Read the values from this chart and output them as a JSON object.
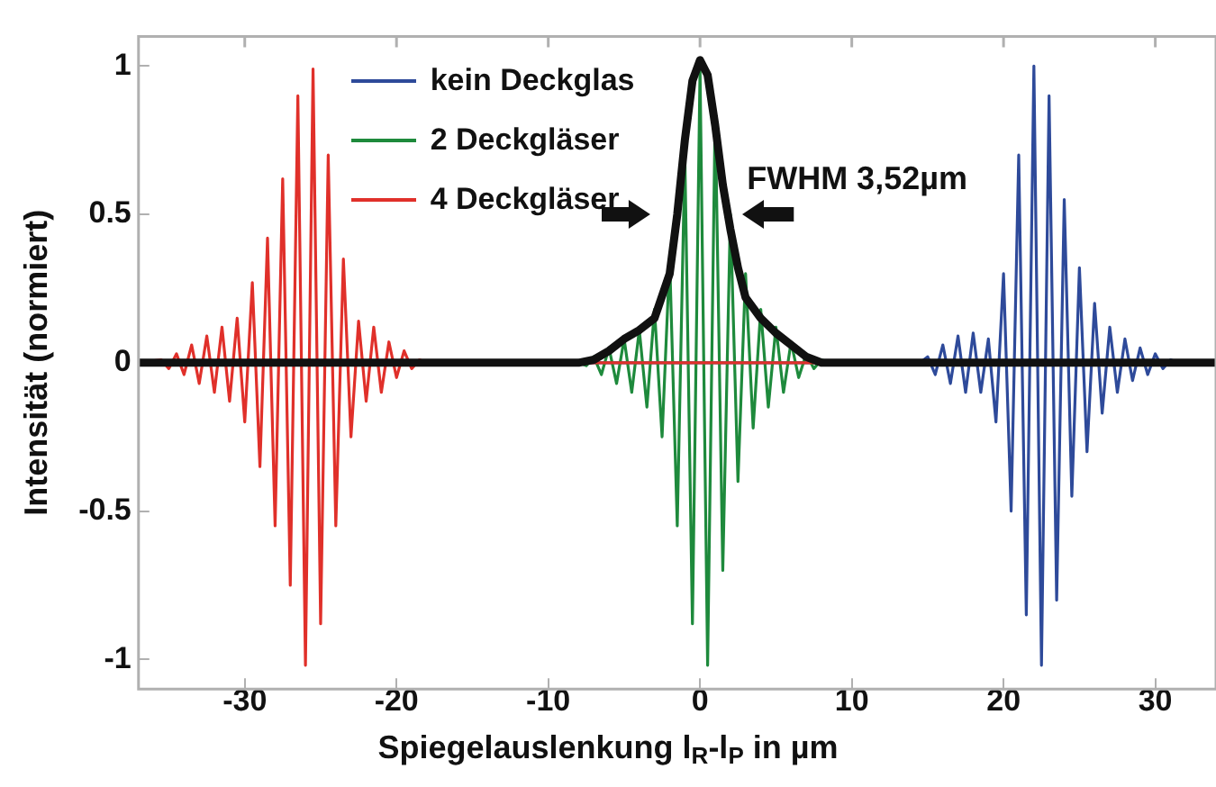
{
  "chart_data": {
    "type": "line",
    "xlabel": "Spiegelauslenkung l$_{R}$-l$_{P}$ in µm",
    "ylabel": "Intensität (normiert)",
    "xlim": [
      -37,
      34
    ],
    "xticks": [
      -30,
      -20,
      -10,
      0,
      10,
      20,
      30
    ],
    "ylim": [
      -1.1,
      1.1
    ],
    "yticks": [
      -1,
      -0.5,
      0,
      0.5,
      1
    ],
    "grid": false,
    "legend": "top left",
    "marker": "none",
    "line_style": "solid",
    "annotations": [
      "FWHM 3,52µm"
    ],
    "series": [
      {
        "name": "kein Deckglas",
        "color": "#2e4a9a",
        "x": [
          -37,
          14.5,
          15,
          15.5,
          16,
          16.5,
          17,
          17.5,
          18,
          18.5,
          19,
          19.5,
          20,
          20.5,
          21,
          21.5,
          22,
          22.5,
          23,
          23.5,
          24,
          24.5,
          25,
          25.5,
          26,
          26.5,
          27,
          27.5,
          28,
          28.5,
          29,
          29.5,
          30,
          30.5,
          31,
          31.5,
          34
        ],
        "values": [
          0,
          0,
          0.02,
          -0.04,
          0.06,
          -0.07,
          0.09,
          -0.1,
          0.1,
          -0.1,
          0.08,
          -0.2,
          0.3,
          -0.5,
          0.7,
          -0.85,
          1.0,
          -1.02,
          0.9,
          -0.8,
          0.55,
          -0.45,
          0.32,
          -0.3,
          0.2,
          -0.17,
          0.12,
          -0.1,
          0.08,
          -0.06,
          0.05,
          -0.04,
          0.03,
          -0.02,
          0.01,
          0,
          0
        ]
      },
      {
        "name": "2 Deckgläser",
        "color": "#1e8a3c",
        "x": [
          -37,
          -8,
          -7.5,
          -7,
          -6.5,
          -6,
          -5.5,
          -5,
          -4.5,
          -4,
          -3.5,
          -3,
          -2.5,
          -2,
          -1.5,
          -1,
          -0.5,
          0,
          0.5,
          1,
          1.5,
          2,
          2.5,
          3,
          3.5,
          4,
          4.5,
          5,
          5.5,
          6,
          6.5,
          7,
          7.5,
          8,
          8.5,
          34
        ],
        "values": [
          0,
          0,
          -0.01,
          0.02,
          -0.04,
          0.05,
          -0.07,
          0.08,
          -0.1,
          0.11,
          -0.15,
          0.18,
          -0.25,
          0.35,
          -0.55,
          0.7,
          -0.88,
          0.99,
          -1.02,
          0.85,
          -0.7,
          0.5,
          -0.4,
          0.3,
          -0.22,
          0.18,
          -0.15,
          0.12,
          -0.1,
          0.07,
          -0.05,
          0.03,
          -0.02,
          0.01,
          0,
          0
        ]
      },
      {
        "name": "4 Deckgläser",
        "color": "#e0302a",
        "x": [
          -37,
          -35.5,
          -35,
          -34.5,
          -34,
          -33.5,
          -33,
          -32.5,
          -32,
          -31.5,
          -31,
          -30.5,
          -30,
          -29.5,
          -29,
          -28.5,
          -28,
          -27.5,
          -27,
          -26.5,
          -26,
          -25.5,
          -25,
          -24.5,
          -24,
          -23.5,
          -23,
          -22.5,
          -22,
          -21.5,
          -21,
          -20.5,
          -20,
          -19.5,
          -19,
          -18.5,
          -18,
          34
        ],
        "values": [
          0,
          0.01,
          -0.02,
          0.03,
          -0.04,
          0.06,
          -0.07,
          0.09,
          -0.1,
          0.12,
          -0.13,
          0.15,
          -0.2,
          0.27,
          -0.35,
          0.42,
          -0.55,
          0.62,
          -0.75,
          0.9,
          -1.02,
          0.99,
          -0.88,
          0.7,
          -0.55,
          0.35,
          -0.25,
          0.14,
          -0.13,
          0.12,
          -0.1,
          0.07,
          -0.05,
          0.04,
          -0.02,
          0.01,
          0,
          0
        ]
      },
      {
        "color": "#111111",
        "x": [
          -37,
          -8,
          -7,
          -6,
          -5,
          -4,
          -3,
          -2,
          -1.5,
          -1,
          -0.5,
          0,
          0.5,
          1,
          1.5,
          2,
          2.5,
          3,
          4,
          5,
          6,
          7,
          8,
          34
        ],
        "values": [
          0,
          0,
          0.01,
          0.04,
          0.08,
          0.11,
          0.15,
          0.3,
          0.5,
          0.75,
          0.95,
          1.02,
          0.97,
          0.8,
          0.6,
          0.45,
          0.32,
          0.22,
          0.15,
          0.1,
          0.06,
          0.02,
          0,
          0
        ]
      }
    ]
  }
}
